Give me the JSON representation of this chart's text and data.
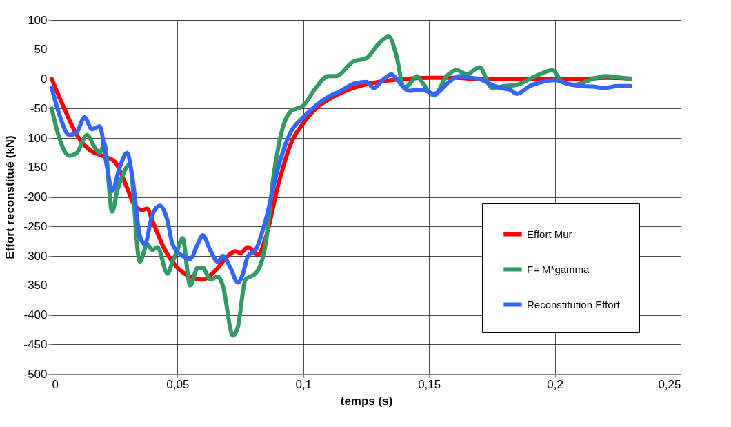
{
  "chart_data": {
    "type": "line",
    "xlabel": "temps (s)",
    "ylabel": "Effort reconstitué (kN)",
    "xlim": [
      0,
      0.25
    ],
    "ylim": [
      -500,
      100
    ],
    "xticks": [
      0,
      {
        "value": 0.05,
        "label": "0,05"
      },
      {
        "value": 0.1,
        "label": "0,1"
      },
      {
        "value": 0.15,
        "label": "0,15"
      },
      {
        "value": 0.2,
        "label": "0,2"
      },
      {
        "value": 0.25,
        "label": "0,25"
      }
    ],
    "yticks": [
      -500,
      -450,
      -400,
      -350,
      -300,
      -250,
      -200,
      -150,
      -100,
      -50,
      0,
      50,
      100
    ],
    "grid": true,
    "legend": "bottom right",
    "marker": "none",
    "line_style": "solid",
    "series": [
      {
        "name": "Effort Mur",
        "color": "#ff0000",
        "x": [
          0,
          0.005,
          0.01,
          0.015,
          0.02,
          0.025,
          0.03,
          0.033,
          0.036,
          0.038,
          0.04,
          0.045,
          0.05,
          0.055,
          0.06,
          0.065,
          0.07,
          0.073,
          0.075,
          0.078,
          0.082,
          0.085,
          0.09,
          0.095,
          0.1,
          0.105,
          0.11,
          0.12,
          0.13,
          0.14,
          0.15,
          0.16,
          0.17,
          0.18,
          0.19,
          0.2,
          0.21,
          0.22,
          0.23
        ],
        "values": [
          0,
          -50,
          -95,
          -120,
          -130,
          -140,
          -185,
          -215,
          -222,
          -220,
          -240,
          -290,
          -320,
          -335,
          -340,
          -325,
          -300,
          -292,
          -295,
          -285,
          -298,
          -270,
          -180,
          -110,
          -75,
          -50,
          -35,
          -15,
          -5,
          0,
          2,
          2,
          0,
          0,
          0,
          0,
          0,
          2,
          1
        ]
      },
      {
        "name": "F= M*gamma",
        "color": "#339966",
        "x": [
          0,
          0.003,
          0.007,
          0.01,
          0.014,
          0.017,
          0.019,
          0.021,
          0.024,
          0.026,
          0.028,
          0.031,
          0.035,
          0.038,
          0.04,
          0.042,
          0.046,
          0.048,
          0.05,
          0.052,
          0.055,
          0.058,
          0.06,
          0.063,
          0.066,
          0.068,
          0.072,
          0.074,
          0.077,
          0.079,
          0.081,
          0.085,
          0.088,
          0.092,
          0.095,
          0.1,
          0.105,
          0.11,
          0.113,
          0.12,
          0.125,
          0.13,
          0.134,
          0.137,
          0.14,
          0.143,
          0.145,
          0.148,
          0.152,
          0.157,
          0.161,
          0.165,
          0.17,
          0.175,
          0.18,
          0.185,
          0.19,
          0.195,
          0.199,
          0.203,
          0.208,
          0.215,
          0.22,
          0.225,
          0.23
        ],
        "values": [
          -50,
          -100,
          -130,
          -125,
          -95,
          -115,
          -125,
          -110,
          -225,
          -190,
          -165,
          -145,
          -310,
          -280,
          -290,
          -285,
          -330,
          -310,
          -290,
          -270,
          -350,
          -320,
          -320,
          -340,
          -335,
          -350,
          -435,
          -420,
          -340,
          -335,
          -330,
          -280,
          -170,
          -80,
          -55,
          -45,
          -15,
          5,
          5,
          30,
          35,
          60,
          72,
          40,
          -15,
          -5,
          5,
          -10,
          -28,
          5,
          15,
          8,
          20,
          -15,
          -12,
          -10,
          0,
          10,
          15,
          -5,
          -10,
          0,
          5,
          3,
          0
        ]
      },
      {
        "name": "Reconstitution Effort",
        "color": "#3366ff",
        "x": [
          0,
          0.003,
          0.007,
          0.01,
          0.013,
          0.016,
          0.019,
          0.022,
          0.024,
          0.027,
          0.03,
          0.032,
          0.035,
          0.037,
          0.04,
          0.043,
          0.046,
          0.048,
          0.052,
          0.055,
          0.058,
          0.06,
          0.063,
          0.066,
          0.068,
          0.071,
          0.074,
          0.076,
          0.078,
          0.081,
          0.085,
          0.09,
          0.095,
          0.1,
          0.105,
          0.11,
          0.115,
          0.12,
          0.125,
          0.128,
          0.132,
          0.135,
          0.138,
          0.142,
          0.147,
          0.152,
          0.158,
          0.162,
          0.165,
          0.17,
          0.175,
          0.178,
          0.182,
          0.185,
          0.19,
          0.195,
          0.2,
          0.205,
          0.21,
          0.215,
          0.22,
          0.225,
          0.23
        ],
        "values": [
          -15,
          -60,
          -95,
          -90,
          -65,
          -85,
          -80,
          -150,
          -190,
          -150,
          -125,
          -165,
          -265,
          -280,
          -230,
          -215,
          -240,
          -280,
          -300,
          -305,
          -280,
          -265,
          -290,
          -310,
          -300,
          -320,
          -345,
          -330,
          -300,
          -290,
          -240,
          -150,
          -90,
          -65,
          -45,
          -30,
          -20,
          -8,
          -5,
          -15,
          0,
          8,
          -5,
          -20,
          -18,
          -25,
          -5,
          5,
          3,
          0,
          -10,
          -15,
          -18,
          -25,
          -12,
          -5,
          -2,
          -8,
          -12,
          -13,
          -15,
          -12,
          -12
        ]
      }
    ]
  }
}
